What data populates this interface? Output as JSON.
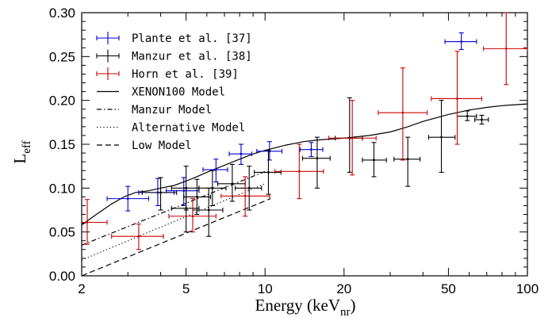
{
  "chart_data": {
    "type": "scatter",
    "title": "",
    "xlabel_main": "Energy (keV",
    "xlabel_sub": "nr",
    "xlabel_close": ")",
    "ylabel_main": "L",
    "ylabel_sub": "eff",
    "xscale": "log",
    "xlim": [
      2,
      100
    ],
    "ylim": [
      0,
      0.3
    ],
    "xticks": [
      2,
      5,
      10,
      20,
      50,
      100
    ],
    "xtick_labels": [
      "2",
      "5",
      "10",
      "20",
      "50",
      "100"
    ],
    "yticks": [
      0,
      0.05,
      0.1,
      0.15,
      0.2,
      0.25,
      0.3
    ],
    "ytick_labels": [
      "0.00",
      "0.05",
      "0.10",
      "0.15",
      "0.20",
      "0.25",
      "0.30"
    ],
    "grid": false,
    "legend_position": "top-left",
    "series": [
      {
        "name": "Plante et al. [37]",
        "color": "#0000cc",
        "points": [
          {
            "x": 3.0,
            "xlo": 2.5,
            "xhi": 3.6,
            "y": 0.088,
            "ylo": 0.074,
            "yhi": 0.102
          },
          {
            "x": 3.9,
            "xlo": 3.3,
            "xhi": 4.5,
            "y": 0.095,
            "ylo": 0.08,
            "yhi": 0.111
          },
          {
            "x": 4.9,
            "xlo": 4.2,
            "xhi": 5.6,
            "y": 0.097,
            "ylo": 0.08,
            "yhi": 0.112
          },
          {
            "x": 6.5,
            "xlo": 5.8,
            "xhi": 7.2,
            "y": 0.121,
            "ylo": 0.107,
            "yhi": 0.133
          },
          {
            "x": 8.1,
            "xlo": 7.3,
            "xhi": 8.9,
            "y": 0.139,
            "ylo": 0.127,
            "yhi": 0.15
          },
          {
            "x": 10.4,
            "xlo": 9.3,
            "xhi": 11.6,
            "y": 0.142,
            "ylo": 0.132,
            "yhi": 0.153
          },
          {
            "x": 15.0,
            "xlo": 13.6,
            "xhi": 16.6,
            "y": 0.144,
            "ylo": 0.136,
            "yhi": 0.152
          },
          {
            "x": 56.0,
            "xlo": 48.5,
            "xhi": 64.0,
            "y": 0.267,
            "ylo": 0.258,
            "yhi": 0.277
          }
        ]
      },
      {
        "name": "Manzur et al. [38]",
        "color": "#000000",
        "points": [
          {
            "x": 4.0,
            "xlo": 3.4,
            "xhi": 4.6,
            "y": 0.095,
            "ylo": 0.075,
            "yhi": 0.112
          },
          {
            "x": 5.0,
            "xlo": 4.4,
            "xhi": 5.6,
            "y": 0.077,
            "ylo": 0.05,
            "yhi": 0.1
          },
          {
            "x": 5.0,
            "xlo": 4.4,
            "xhi": 5.6,
            "y": 0.1,
            "ylo": 0.075,
            "yhi": 0.125
          },
          {
            "x": 5.5,
            "xlo": 4.9,
            "xhi": 6.2,
            "y": 0.09,
            "ylo": 0.07,
            "yhi": 0.11
          },
          {
            "x": 6.1,
            "xlo": 5.3,
            "xhi": 6.9,
            "y": 0.075,
            "ylo": 0.045,
            "yhi": 0.1
          },
          {
            "x": 6.3,
            "xlo": 5.6,
            "xhi": 7.1,
            "y": 0.1,
            "ylo": 0.08,
            "yhi": 0.12
          },
          {
            "x": 7.5,
            "xlo": 6.6,
            "xhi": 8.4,
            "y": 0.105,
            "ylo": 0.085,
            "yhi": 0.127
          },
          {
            "x": 8.7,
            "xlo": 7.7,
            "xhi": 9.7,
            "y": 0.1,
            "ylo": 0.075,
            "yhi": 0.125
          },
          {
            "x": 10.3,
            "xlo": 9.1,
            "xhi": 11.5,
            "y": 0.118,
            "ylo": 0.093,
            "yhi": 0.143
          },
          {
            "x": 15.8,
            "xlo": 13.9,
            "xhi": 17.7,
            "y": 0.134,
            "ylo": 0.1,
            "yhi": 0.158
          },
          {
            "x": 21.0,
            "xlo": 18.5,
            "xhi": 23.5,
            "y": 0.157,
            "ylo": 0.118,
            "yhi": 0.203
          },
          {
            "x": 26.0,
            "xlo": 23.5,
            "xhi": 29.0,
            "y": 0.132,
            "ylo": 0.113,
            "yhi": 0.152
          },
          {
            "x": 35.0,
            "xlo": 31.0,
            "xhi": 39.0,
            "y": 0.133,
            "ylo": 0.102,
            "yhi": 0.158
          },
          {
            "x": 47.0,
            "xlo": 42.0,
            "xhi": 53.0,
            "y": 0.158,
            "ylo": 0.118,
            "yhi": 0.2
          },
          {
            "x": 59.0,
            "xlo": 54.0,
            "xhi": 64.0,
            "y": 0.182,
            "ylo": 0.177,
            "yhi": 0.188
          },
          {
            "x": 67.0,
            "xlo": 63.0,
            "xhi": 71.0,
            "y": 0.178,
            "ylo": 0.173,
            "yhi": 0.183
          }
        ]
      },
      {
        "name": "Horn et al. [39]",
        "color": "#cc0000",
        "points": [
          {
            "x": 2.1,
            "xlo": 1.8,
            "xhi": 2.5,
            "y": 0.061,
            "ylo": 0.036,
            "yhi": 0.087
          },
          {
            "x": 3.3,
            "xlo": 2.6,
            "xhi": 4.1,
            "y": 0.045,
            "ylo": 0.03,
            "yhi": 0.059
          },
          {
            "x": 5.3,
            "xlo": 4.3,
            "xhi": 6.5,
            "y": 0.068,
            "ylo": 0.05,
            "yhi": 0.088
          },
          {
            "x": 8.4,
            "xlo": 6.8,
            "xhi": 10.4,
            "y": 0.091,
            "ylo": 0.068,
            "yhi": 0.113
          },
          {
            "x": 13.5,
            "xlo": 10.9,
            "xhi": 16.7,
            "y": 0.119,
            "ylo": 0.088,
            "yhi": 0.15
          },
          {
            "x": 21.5,
            "xlo": 17.5,
            "xhi": 26.5,
            "y": 0.157,
            "ylo": 0.115,
            "yhi": 0.2
          },
          {
            "x": 33.5,
            "xlo": 27.0,
            "xhi": 41.5,
            "y": 0.186,
            "ylo": 0.132,
            "yhi": 0.237
          },
          {
            "x": 54.0,
            "xlo": 43.0,
            "xhi": 67.0,
            "y": 0.202,
            "ylo": 0.15,
            "yhi": 0.256
          },
          {
            "x": 83.0,
            "xlo": 68.0,
            "xhi": 100.0,
            "y": 0.259,
            "ylo": 0.218,
            "yhi": 0.3
          }
        ]
      }
    ],
    "models": [
      {
        "name": "XENON100 Model",
        "dash": "none",
        "x": [
          2,
          2.3,
          2.6,
          2.9,
          3.2,
          3.6,
          4,
          4.5,
          5,
          5.5,
          6,
          7,
          8,
          9,
          10,
          12,
          14,
          16,
          20,
          25,
          30,
          35,
          40,
          50,
          60,
          70,
          80,
          100
        ],
        "y": [
          0.058,
          0.071,
          0.082,
          0.09,
          0.095,
          0.097,
          0.1,
          0.103,
          0.108,
          0.113,
          0.118,
          0.126,
          0.133,
          0.139,
          0.143,
          0.149,
          0.153,
          0.155,
          0.157,
          0.16,
          0.164,
          0.17,
          0.176,
          0.184,
          0.189,
          0.192,
          0.194,
          0.196
        ]
      },
      {
        "name": "Manzur Model",
        "dash": "6,3,1.5,3",
        "x": [
          2,
          10.2
        ],
        "y": [
          0.035,
          0.12
        ]
      },
      {
        "name": "Alternative Model",
        "dash": "1.2,3",
        "x": [
          2,
          10
        ],
        "y": [
          0.018,
          0.105
        ]
      },
      {
        "name": "Low Model",
        "dash": "7,4",
        "x": [
          2,
          10.5
        ],
        "y": [
          0.0,
          0.088
        ]
      }
    ]
  }
}
